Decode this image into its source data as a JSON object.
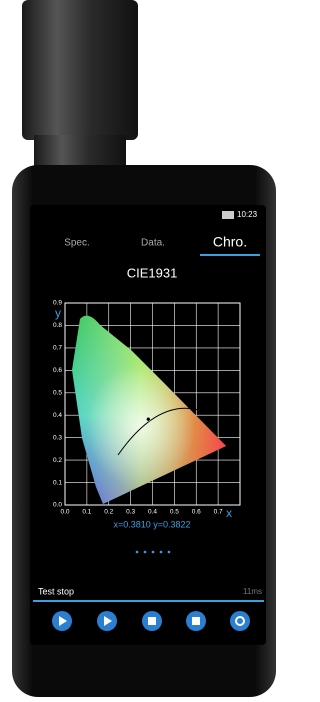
{
  "status_bar": {
    "time": "10:23"
  },
  "tabs": [
    "Spec.",
    "Data.",
    "Chro."
  ],
  "chart_data": {
    "type": "scatter",
    "title": "CIE1931",
    "x_label": "x",
    "y_label": "y",
    "xlim": [
      0,
      0.8
    ],
    "ylim": [
      0,
      0.9
    ],
    "xticks": [
      {
        "value": 0,
        "label": "0.0"
      },
      0.1,
      0.2,
      0.3,
      0.4,
      0.5,
      0.6,
      0.7
    ],
    "yticks": [
      {
        "value": 0,
        "label": "0.0"
      },
      0.1,
      0.2,
      0.3,
      0.4,
      0.5,
      0.6,
      0.7,
      0.8,
      0.9
    ],
    "grid": true,
    "x": [
      0.381
    ],
    "values": [
      0.3822
    ],
    "color": "#000000",
    "readout": "x=0.3810  y=0.3822"
  },
  "footer": {
    "status": "Test stop",
    "time": "11ms"
  }
}
